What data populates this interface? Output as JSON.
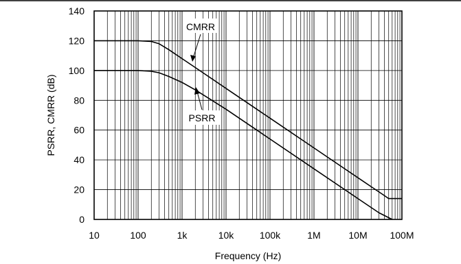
{
  "chart_data": {
    "type": "line",
    "xlabel": "Frequency (Hz)",
    "ylabel": "PSRR, CMRR (dB)",
    "x_scale": "log",
    "xlim": [
      10,
      100000000
    ],
    "ylim": [
      0,
      140
    ],
    "grid": true,
    "x_ticks": [
      {
        "value": 10,
        "label": "10"
      },
      {
        "value": 100,
        "label": "100"
      },
      {
        "value": 1000,
        "label": "1k"
      },
      {
        "value": 10000,
        "label": "10k"
      },
      {
        "value": 100000,
        "label": "100k"
      },
      {
        "value": 1000000,
        "label": "1M"
      },
      {
        "value": 10000000,
        "label": "10M"
      },
      {
        "value": 100000000,
        "label": "100M"
      }
    ],
    "y_ticks": [
      {
        "value": 0,
        "label": "0"
      },
      {
        "value": 20,
        "label": "20"
      },
      {
        "value": 40,
        "label": "40"
      },
      {
        "value": 60,
        "label": "60"
      },
      {
        "value": 80,
        "label": "80"
      },
      {
        "value": 100,
        "label": "100"
      },
      {
        "value": 120,
        "label": "120"
      },
      {
        "value": 140,
        "label": "140"
      }
    ],
    "series": [
      {
        "name": "CMRR",
        "points": [
          [
            10,
            120
          ],
          [
            100,
            120
          ],
          [
            200,
            119.5
          ],
          [
            300,
            118
          ],
          [
            500,
            114
          ],
          [
            1000,
            108
          ],
          [
            2000,
            102
          ],
          [
            10000,
            88
          ],
          [
            100000,
            68
          ],
          [
            1000000,
            48
          ],
          [
            10000000,
            28
          ],
          [
            20000000,
            22
          ],
          [
            40000000,
            16
          ],
          [
            50000000,
            14
          ],
          [
            100000000,
            14
          ]
        ]
      },
      {
        "name": "PSRR",
        "points": [
          [
            10,
            100
          ],
          [
            100,
            100
          ],
          [
            200,
            99.5
          ],
          [
            300,
            98.5
          ],
          [
            500,
            96
          ],
          [
            1000,
            92
          ],
          [
            2000,
            87
          ],
          [
            10000,
            74
          ],
          [
            100000,
            54
          ],
          [
            1000000,
            34
          ],
          [
            10000000,
            14
          ],
          [
            30000000,
            4.5
          ],
          [
            60000000,
            0
          ]
        ]
      }
    ],
    "annotations": [
      {
        "text": "CMRR",
        "series": "CMRR"
      },
      {
        "text": "PSRR",
        "series": "PSRR"
      }
    ]
  }
}
